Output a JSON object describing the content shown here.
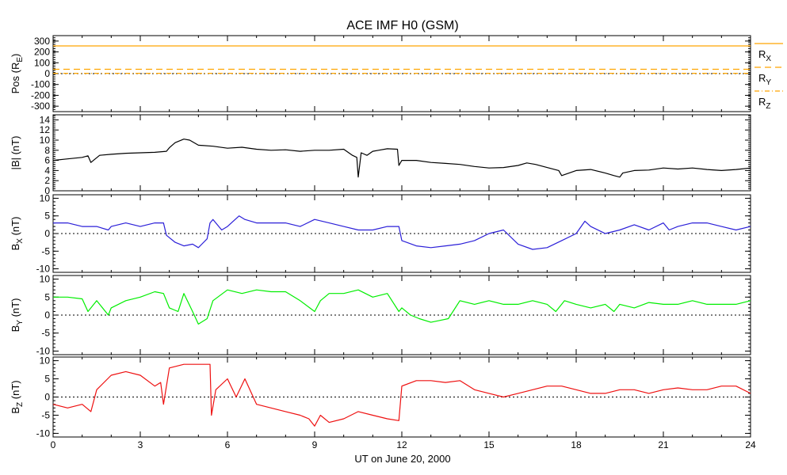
{
  "title": "ACE IMF H0 (GSM)",
  "xlabel": "UT on June 20, 2000",
  "colors": {
    "pos": "#ffa500",
    "b": "#000000",
    "bx": "#2b1fd8",
    "by": "#00ee00",
    "bz": "#ee1010",
    "zero_line": "#000000"
  },
  "chart_data": [
    {
      "type": "line",
      "panel": "pos",
      "ylabel": "Pos (R",
      "ylabel_sub": "E",
      "ylabel_end": ")",
      "ylim": [
        -350,
        350
      ],
      "yticks": [
        300,
        200,
        100,
        0,
        -100,
        -200,
        -300
      ],
      "ytick_labels": [
        "300",
        "200",
        "100",
        "0",
        "-100",
        "-200",
        "-300"
      ],
      "zero_line": true,
      "legend": [
        {
          "label": "R",
          "sub": "X",
          "style": "solid"
        },
        {
          "label": "R",
          "sub": "Y",
          "style": "dashed"
        },
        {
          "label": "R",
          "sub": "Z",
          "style": "dashdot"
        }
      ],
      "series": [
        {
          "name": "RX",
          "style": "solid",
          "x": [
            0,
            24
          ],
          "y": [
            255,
            255
          ]
        },
        {
          "name": "RY",
          "style": "dashed",
          "x": [
            0,
            24
          ],
          "y": [
            40,
            40
          ]
        },
        {
          "name": "RZ",
          "style": "dashdot",
          "x": [
            0,
            24
          ],
          "y": [
            3,
            3
          ]
        }
      ]
    },
    {
      "type": "line",
      "panel": "b",
      "ylabel": "|B| (nT)",
      "ylim": [
        0,
        15
      ],
      "yticks": [
        14,
        12,
        10,
        8,
        6,
        4,
        2,
        0
      ],
      "ytick_labels": [
        "14",
        "12",
        "10",
        "8",
        "6",
        "4",
        "2",
        "0"
      ],
      "zero_line": false,
      "series": [
        {
          "name": "|B|",
          "x": [
            0,
            0.5,
            1.0,
            1.2,
            1.3,
            1.6,
            2.0,
            2.5,
            3.0,
            3.5,
            3.9,
            4.0,
            4.2,
            4.5,
            4.7,
            5.0,
            5.5,
            6.0,
            6.5,
            7.0,
            7.5,
            8.0,
            8.5,
            9.0,
            9.5,
            10.0,
            10.3,
            10.45,
            10.5,
            10.6,
            10.8,
            11.0,
            11.2,
            11.5,
            11.85,
            11.9,
            12.0,
            12.5,
            13.0,
            13.5,
            14.0,
            14.5,
            15.0,
            15.5,
            16.0,
            16.3,
            16.6,
            17.0,
            17.4,
            17.5,
            18.0,
            18.5,
            19.0,
            19.3,
            19.5,
            19.6,
            20.0,
            20.5,
            21.0,
            21.5,
            22.0,
            22.5,
            23.0,
            23.5,
            24.0
          ],
          "y": [
            6.0,
            6.3,
            6.6,
            6.9,
            5.6,
            7.0,
            7.2,
            7.4,
            7.5,
            7.6,
            7.8,
            8.5,
            9.5,
            10.2,
            10.0,
            9.0,
            8.8,
            8.4,
            8.6,
            8.2,
            8.0,
            8.1,
            7.8,
            8.0,
            8.0,
            8.2,
            7.0,
            6.6,
            2.7,
            7.5,
            7.0,
            7.8,
            8.0,
            8.3,
            8.2,
            5.0,
            6.0,
            6.0,
            5.6,
            5.4,
            5.2,
            4.8,
            4.5,
            4.6,
            5.0,
            5.5,
            5.2,
            4.6,
            4.0,
            3.0,
            4.0,
            4.2,
            3.5,
            3.0,
            2.7,
            3.5,
            4.0,
            4.1,
            4.5,
            4.3,
            4.5,
            4.2,
            4.0,
            4.2,
            4.5
          ]
        }
      ]
    },
    {
      "type": "line",
      "panel": "bx",
      "ylabel": "B",
      "ylabel_sub": "X",
      "ylabel_end": " (nT)",
      "ylim": [
        -11,
        11
      ],
      "yticks": [
        10,
        5,
        0,
        -5,
        -10
      ],
      "ytick_labels": [
        "10",
        "5",
        "0",
        "-5",
        "-10"
      ],
      "zero_line": true,
      "series": [
        {
          "name": "BX",
          "x": [
            0,
            0.5,
            1.0,
            1.5,
            1.9,
            2.0,
            2.5,
            3.0,
            3.5,
            3.8,
            3.9,
            4.2,
            4.5,
            4.8,
            5.0,
            5.3,
            5.4,
            5.5,
            5.8,
            6.0,
            6.4,
            6.6,
            7.0,
            7.5,
            8.0,
            8.5,
            9.0,
            9.5,
            10.0,
            10.5,
            11.0,
            11.5,
            11.9,
            12.0,
            12.5,
            13.0,
            13.5,
            14.0,
            14.5,
            15.0,
            15.5,
            16.0,
            16.5,
            17.0,
            17.5,
            18.0,
            18.3,
            18.5,
            19.0,
            19.5,
            20.0,
            20.5,
            21.0,
            21.2,
            21.5,
            22.0,
            22.5,
            23.0,
            23.5,
            24.0
          ],
          "y": [
            3,
            3,
            2,
            2,
            1,
            2,
            3,
            2,
            3,
            3,
            -0.5,
            -2.5,
            -3.5,
            -3,
            -4,
            -1.5,
            3,
            4,
            1,
            2,
            5,
            4,
            3,
            3,
            3,
            2,
            4,
            3,
            2,
            1,
            1,
            2,
            2,
            -2,
            -3.5,
            -4,
            -3.5,
            -3,
            -2,
            0,
            1,
            -3,
            -4.5,
            -4,
            -2,
            0,
            3.5,
            2,
            0,
            1,
            2.5,
            1,
            3,
            1,
            2,
            3,
            3,
            2,
            1,
            2
          ]
        }
      ]
    },
    {
      "type": "line",
      "panel": "by",
      "ylabel": "B",
      "ylabel_sub": "Y",
      "ylabel_end": " (nT)",
      "ylim": [
        -11,
        11
      ],
      "yticks": [
        10,
        5,
        0,
        -5,
        -10
      ],
      "ytick_labels": [
        "10",
        "5",
        "0",
        "-5",
        "-10"
      ],
      "zero_line": true,
      "series": [
        {
          "name": "BY",
          "x": [
            0,
            0.5,
            1.0,
            1.2,
            1.5,
            1.9,
            2.0,
            2.5,
            3.0,
            3.5,
            3.8,
            4.0,
            4.3,
            4.5,
            4.8,
            5.0,
            5.3,
            5.5,
            6.0,
            6.5,
            7.0,
            7.5,
            8.0,
            8.5,
            9.0,
            9.2,
            9.5,
            10.0,
            10.5,
            11.0,
            11.5,
            11.9,
            12.0,
            12.3,
            12.6,
            13.0,
            13.3,
            13.6,
            14.0,
            14.5,
            15.0,
            15.5,
            16.0,
            16.5,
            17.0,
            17.3,
            17.6,
            18.0,
            18.5,
            19.0,
            19.3,
            19.5,
            20.0,
            20.5,
            21.0,
            21.5,
            22.0,
            22.5,
            23.0,
            23.5,
            24.0
          ],
          "y": [
            5,
            5,
            4.5,
            1,
            4,
            0,
            2,
            4,
            5,
            6.5,
            6,
            2,
            1,
            6,
            1,
            -2.5,
            -1,
            4,
            7,
            6,
            7,
            6.5,
            6.5,
            4,
            1,
            4,
            6,
            6,
            7,
            5,
            6,
            1,
            2,
            0,
            -1,
            -2,
            -1.5,
            -1,
            4,
            3,
            4,
            3,
            3,
            4,
            3,
            1,
            4,
            3,
            2,
            3,
            1,
            3,
            2,
            3.5,
            3,
            3,
            4,
            3,
            3,
            3,
            4
          ]
        }
      ]
    },
    {
      "type": "line",
      "panel": "bz",
      "ylabel": "B",
      "ylabel_sub": "Z",
      "ylabel_end": " (nT)",
      "ylim": [
        -11,
        11
      ],
      "yticks": [
        10,
        5,
        0,
        -5,
        -10
      ],
      "ytick_labels": [
        "10",
        "5",
        "0",
        "-5",
        "-10"
      ],
      "zero_line": true,
      "series": [
        {
          "name": "BZ",
          "x": [
            0,
            0.5,
            1.0,
            1.3,
            1.5,
            2.0,
            2.5,
            3.0,
            3.5,
            3.7,
            3.8,
            4.0,
            4.5,
            5.0,
            5.4,
            5.45,
            5.6,
            6.0,
            6.3,
            6.6,
            7.0,
            7.5,
            8.0,
            8.5,
            8.8,
            9.0,
            9.2,
            9.5,
            10.0,
            10.5,
            11.0,
            11.5,
            11.9,
            12.0,
            12.5,
            13.0,
            13.5,
            14.0,
            14.5,
            15.0,
            15.5,
            16.0,
            16.5,
            17.0,
            17.5,
            18.0,
            18.5,
            19.0,
            19.5,
            20.0,
            20.5,
            21.0,
            21.5,
            22.0,
            22.5,
            23.0,
            23.5,
            24.0
          ],
          "y": [
            -2,
            -3,
            -2,
            -4,
            2,
            6,
            7,
            6,
            3,
            4,
            -2,
            8,
            9,
            9,
            9,
            -5,
            2,
            5,
            0,
            5,
            -2,
            -3,
            -4,
            -5,
            -6,
            -8,
            -5,
            -7,
            -6,
            -4,
            -5,
            -6,
            -6.5,
            3,
            4.5,
            4.5,
            4,
            4.5,
            2,
            1,
            0,
            1,
            2,
            3,
            3,
            2,
            1,
            1,
            2,
            2,
            1,
            2,
            2.5,
            2,
            2,
            3,
            3,
            1
          ]
        }
      ]
    }
  ],
  "x_axis": {
    "xlim": [
      0,
      24
    ],
    "xticks": [
      0,
      3,
      6,
      9,
      12,
      15,
      18,
      21,
      24
    ],
    "xtick_labels": [
      "0",
      "3",
      "6",
      "9",
      "12",
      "15",
      "18",
      "21",
      "24"
    ]
  }
}
